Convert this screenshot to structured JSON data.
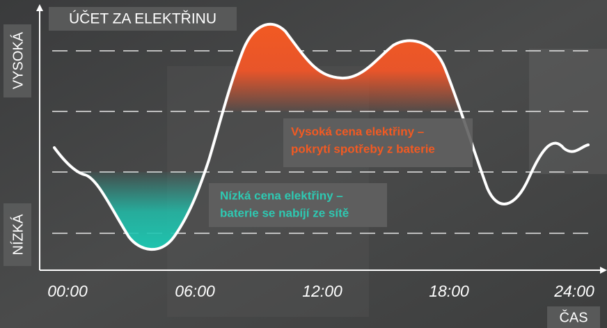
{
  "title": "ÚČET ZA ELEKTŘINU",
  "y_axis": {
    "high": "VYSOKÁ",
    "low": "NÍZKÁ"
  },
  "x_axis": {
    "label": "ČAS",
    "ticks": [
      "00:00",
      "06:00",
      "12:00",
      "18:00",
      "24:00"
    ]
  },
  "annotations": {
    "high": [
      "Vysoká cena elektřiny –",
      "pokrytí spotřeby z baterie"
    ],
    "low": [
      "Nízká cena elektřiny –",
      "baterie se nabíjí ze sítě"
    ]
  }
}
